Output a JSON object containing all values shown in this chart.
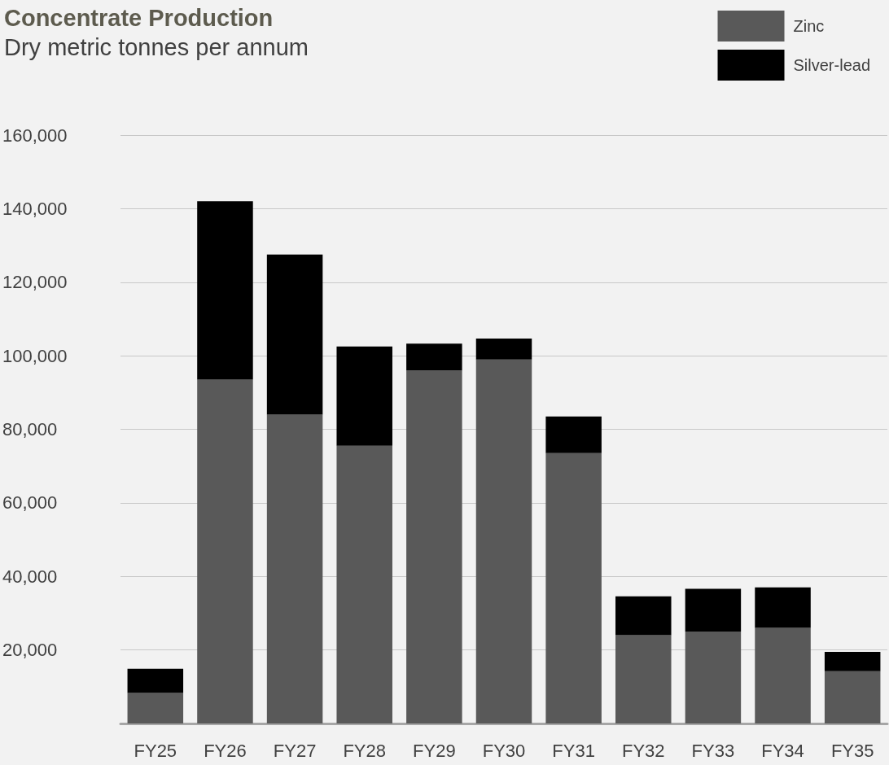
{
  "chart_data": {
    "type": "bar",
    "title": "Concentrate Production",
    "subtitle": "Dry metric tonnes per annum",
    "categories": [
      "FY25",
      "FY26",
      "FY27",
      "FY28",
      "FY29",
      "FY30",
      "FY31",
      "FY32",
      "FY33",
      "FY34",
      "FY35"
    ],
    "stacked": true,
    "series": [
      {
        "name": "Zinc",
        "color": "#595959",
        "values": [
          8300,
          93500,
          84000,
          75500,
          96000,
          99000,
          73500,
          24000,
          25000,
          26000,
          14200
        ]
      },
      {
        "name": "Silver-lead",
        "color": "#000000",
        "values": [
          6600,
          48500,
          43500,
          27000,
          7300,
          5700,
          10000,
          10600,
          11600,
          11000,
          5300
        ]
      }
    ],
    "ylim": [
      0,
      160000
    ],
    "yticks": [
      {
        "value": 20000,
        "label": "20,000"
      },
      {
        "value": 40000,
        "label": "40,000"
      },
      {
        "value": 60000,
        "label": "60,000"
      },
      {
        "value": 80000,
        "label": "80,000"
      },
      {
        "value": 100000,
        "label": "100,000"
      },
      {
        "value": 120000,
        "label": "120,000"
      },
      {
        "value": 140000,
        "label": "140,000"
      },
      {
        "value": 160000,
        "label": "160,000"
      }
    ],
    "grid": "y",
    "legend": "top right"
  }
}
